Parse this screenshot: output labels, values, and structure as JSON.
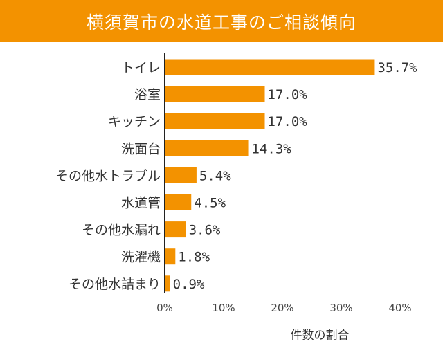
{
  "chart_data": {
    "type": "bar",
    "orientation": "horizontal",
    "title": "横須賀市の水道工事のご相談傾向",
    "xlabel": "件数の割合",
    "categories": [
      "トイレ",
      "浴室",
      "キッチン",
      "洗面台",
      "その他水トラブル",
      "水道管",
      "その他水漏れ",
      "洗濯機",
      "その他水詰まり"
    ],
    "values": [
      35.7,
      17.0,
      17.0,
      14.3,
      5.4,
      4.5,
      3.6,
      1.8,
      0.9
    ],
    "value_labels": [
      "35.7%",
      "17.0%",
      "17.0%",
      "14.3%",
      "5.4%",
      "4.5%",
      "3.6%",
      "1.8%",
      "0.9%"
    ],
    "xlim": [
      0,
      40
    ],
    "xticks": [
      0,
      10,
      20,
      30,
      40
    ],
    "xtick_labels": [
      "0%",
      "10%",
      "20%",
      "30%",
      "40%"
    ],
    "grid": false,
    "bar_color": "#f39200",
    "title_background": "#f39200"
  }
}
